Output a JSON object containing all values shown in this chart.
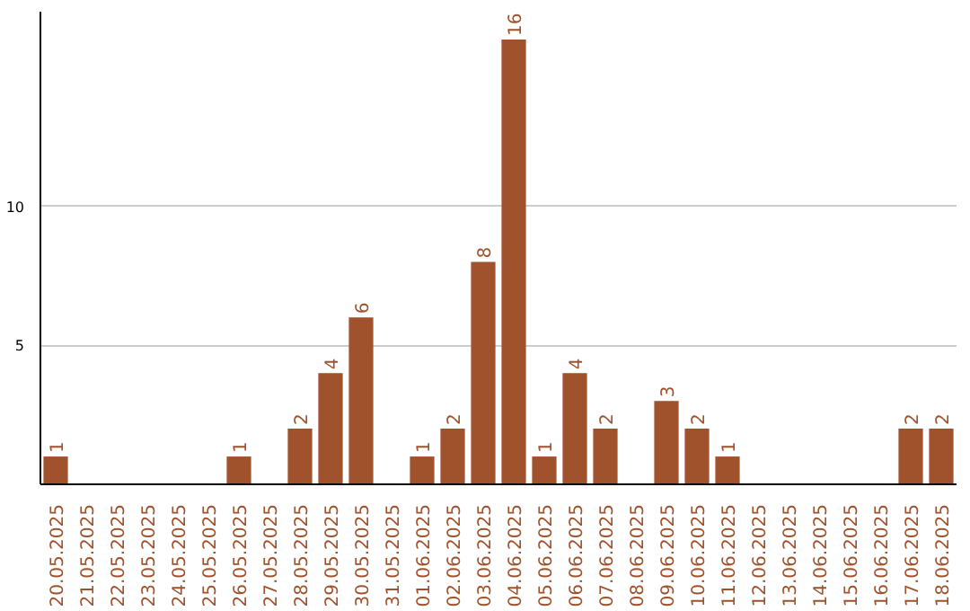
{
  "chart_data": {
    "type": "bar",
    "categories": [
      "20.05.2025",
      "21.05.2025",
      "22.05.2025",
      "23.05.2025",
      "24.05.2025",
      "25.05.2025",
      "26.05.2025",
      "27.05.2025",
      "28.05.2025",
      "29.05.2025",
      "30.05.2025",
      "31.05.2025",
      "01.06.2025",
      "02.06.2025",
      "03.06.2025",
      "04.06.2025",
      "05.06.2025",
      "06.06.2025",
      "07.06.2025",
      "08.06.2025",
      "09.06.2025",
      "10.06.2025",
      "11.06.2025",
      "12.06.2025",
      "13.06.2025",
      "14.06.2025",
      "15.06.2025",
      "16.06.2025",
      "17.06.2025",
      "18.06.2025"
    ],
    "values": [
      1,
      0,
      0,
      0,
      0,
      0,
      1,
      0,
      2,
      4,
      6,
      0,
      1,
      2,
      8,
      16,
      1,
      4,
      2,
      0,
      3,
      2,
      1,
      0,
      0,
      0,
      0,
      0,
      2,
      2
    ],
    "value_labels": [
      "1",
      null,
      null,
      null,
      null,
      null,
      "1",
      null,
      "2",
      "4",
      "6",
      null,
      "1",
      "2",
      "8",
      "16",
      "1",
      "4",
      "2",
      null,
      "3",
      "2",
      "1",
      null,
      null,
      null,
      null,
      null,
      "2",
      "2"
    ],
    "color": "#a0522d",
    "ylim": [
      0,
      17
    ],
    "yticks": [
      5,
      10
    ],
    "grid": "y"
  }
}
